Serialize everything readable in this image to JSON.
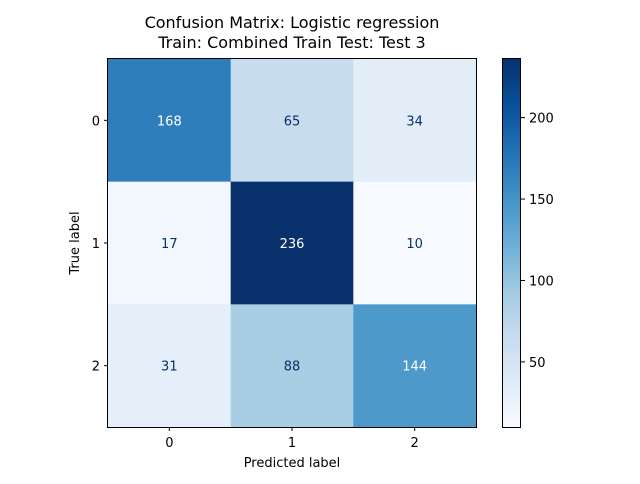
{
  "chart_data": {
    "type": "heatmap",
    "title": "Confusion Matrix: Logistic regression",
    "subtitle": "Train: Combined Train Test: Test 3",
    "xlabel": "Predicted label",
    "ylabel": "True label",
    "x_categories": [
      "0",
      "1",
      "2"
    ],
    "y_categories": [
      "0",
      "1",
      "2"
    ],
    "matrix": [
      [
        168,
        65,
        34
      ],
      [
        17,
        236,
        10
      ],
      [
        31,
        88,
        144
      ]
    ],
    "colormap": "Blues",
    "colorbar": {
      "range": [
        10,
        236
      ],
      "ticks": [
        50,
        100,
        150,
        200
      ],
      "tick_labels": [
        "50",
        "100",
        "150",
        "200"
      ]
    },
    "grid": false,
    "colors": {
      "low": "#f7fbff",
      "high": "#08306b",
      "text_dark": "#08306b",
      "text_light": "#ffffff"
    }
  }
}
